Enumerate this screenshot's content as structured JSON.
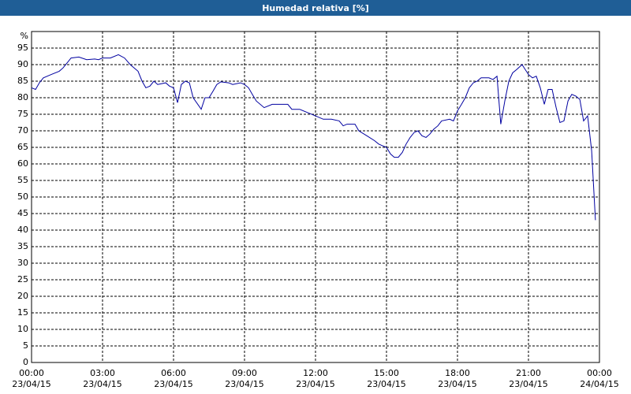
{
  "chart_data": {
    "type": "line",
    "title": "Humedad relativa [%]",
    "y_label": "%",
    "x": [
      0,
      0.17,
      0.33,
      0.5,
      0.83,
      1.17,
      1.33,
      1.5,
      1.67,
      2,
      2.33,
      2.67,
      2.83,
      3,
      3.33,
      3.67,
      3.93,
      4.17,
      4.5,
      4.67,
      4.83,
      5,
      5.17,
      5.33,
      5.67,
      5.83,
      6,
      6.17,
      6.33,
      6.5,
      6.67,
      6.83,
      7.17,
      7.33,
      7.5,
      7.67,
      7.83,
      8,
      8.33,
      8.5,
      8.83,
      9,
      9.17,
      9.33,
      9.5,
      9.83,
      10.17,
      10.5,
      10.83,
      11,
      11.33,
      11.67,
      12,
      12.33,
      12.67,
      13,
      13.17,
      13.33,
      13.67,
      13.83,
      14.17,
      14.5,
      14.67,
      14.83,
      15,
      15.17,
      15.33,
      15.5,
      15.67,
      15.83,
      16,
      16.17,
      16.33,
      16.5,
      16.67,
      16.83,
      17,
      17.17,
      17.33,
      17.67,
      17.83,
      18,
      18.17,
      18.33,
      18.5,
      18.67,
      18.83,
      19,
      19.33,
      19.5,
      19.67,
      19.83,
      20,
      20.17,
      20.33,
      20.5,
      20.73,
      21,
      21.17,
      21.33,
      21.5,
      21.67,
      21.83,
      22,
      22.17,
      22.33,
      22.5,
      22.67,
      22.83,
      23,
      23.17,
      23.33,
      23.5,
      23.67,
      23.83
    ],
    "series": [
      {
        "name": "Humedad relativa",
        "color": "#0000a0",
        "values": [
          83,
          82.5,
          84.5,
          86,
          87,
          88,
          89,
          90.5,
          92,
          92.3,
          91.5,
          91.7,
          91.5,
          92,
          92,
          93,
          92,
          90,
          88,
          85,
          83,
          83.5,
          85,
          84,
          84.5,
          83.5,
          83,
          78.5,
          84,
          85,
          84.5,
          80,
          76.5,
          80,
          80,
          82,
          84,
          84.8,
          84.5,
          84,
          84.5,
          84,
          83,
          81,
          79,
          77,
          78,
          78,
          78,
          76.5,
          76.5,
          75.5,
          74.5,
          73.5,
          73.5,
          73,
          71.5,
          72,
          72,
          70,
          68.5,
          67,
          66,
          65.5,
          65,
          63,
          62,
          62,
          63.5,
          66,
          68,
          69.5,
          70,
          68.5,
          68,
          69,
          70.5,
          71.5,
          73,
          73.5,
          73,
          76,
          78,
          80,
          83,
          84.5,
          85,
          86,
          86,
          85.5,
          86.5,
          72,
          79,
          85,
          87.5,
          88.5,
          90,
          87,
          86,
          86.5,
          83,
          78,
          82.5,
          82.5,
          77,
          72.5,
          73,
          79,
          81,
          80.5,
          79.5,
          73,
          74.5,
          64,
          43
        ]
      }
    ],
    "xlim": [
      0,
      24
    ],
    "xticks": [
      {
        "value": 0,
        "label": "00:00\n23/04/15"
      },
      {
        "value": 3,
        "label": "03:00\n23/04/15"
      },
      {
        "value": 6,
        "label": "06:00\n23/04/15"
      },
      {
        "value": 9,
        "label": "09:00\n23/04/15"
      },
      {
        "value": 12,
        "label": "12:00\n23/04/15"
      },
      {
        "value": 15,
        "label": "15:00\n23/04/15"
      },
      {
        "value": 18,
        "label": "18:00\n23/04/15"
      },
      {
        "value": 21,
        "label": "21:00\n23/04/15"
      },
      {
        "value": 24,
        "label": "00:00\n24/04/15"
      }
    ],
    "ylim": [
      0,
      100
    ],
    "yticks": [
      0,
      5,
      10,
      15,
      20,
      25,
      30,
      35,
      40,
      45,
      50,
      55,
      60,
      65,
      70,
      75,
      80,
      85,
      90,
      95
    ],
    "grid": true
  }
}
